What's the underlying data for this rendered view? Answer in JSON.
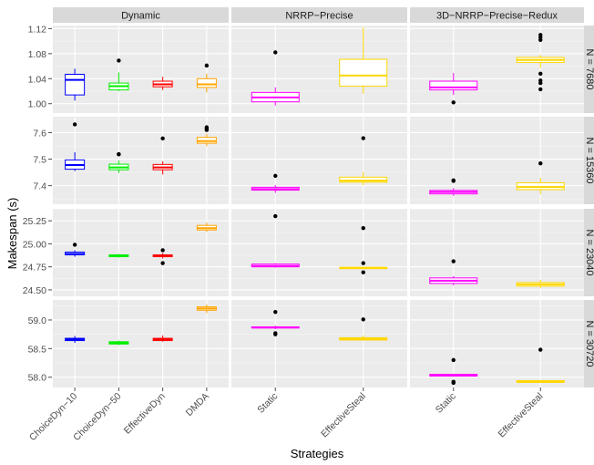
{
  "chart_data": {
    "type": "box",
    "xlabel": "Strategies",
    "ylabel": "Makespan (s)",
    "colors": {
      "ChoiceDyn−10": "#0000ff",
      "ChoiceDyn−50": "#00ee00",
      "EffectiveDyn": "#ff0000",
      "DMDA": "#ffa500",
      "Static": "#ff00ff",
      "EffectiveSteal": "#ffd700"
    },
    "columns": [
      {
        "label": "Dynamic",
        "strategies": [
          "ChoiceDyn−10",
          "ChoiceDyn−50",
          "EffectiveDyn",
          "DMDA"
        ]
      },
      {
        "label": "NRRP−Precise",
        "strategies": [
          "Static",
          "EffectiveSteal"
        ]
      },
      {
        "label": "3D−NRRP−Precise−Redux",
        "strategies": [
          "Static",
          "EffectiveSteal"
        ]
      }
    ],
    "rows": [
      {
        "label": "N = 7680",
        "ylim": [
          0.985,
          1.125
        ],
        "ticks": [
          1.0,
          1.04,
          1.08,
          1.12
        ],
        "tick_labels": [
          "1.00",
          "1.04",
          "1.08",
          "1.12"
        ],
        "boxes": [
          [
            {
              "min": 1.005,
              "q1": 1.014,
              "median": 1.038,
              "q3": 1.047,
              "max": 1.056,
              "outliers": []
            },
            {
              "min": 1.02,
              "q1": 1.022,
              "median": 1.028,
              "q3": 1.033,
              "max": 1.05,
              "outliers": [
                1.069
              ]
            },
            {
              "min": 1.022,
              "q1": 1.027,
              "median": 1.031,
              "q3": 1.036,
              "max": 1.043,
              "outliers": []
            },
            {
              "min": 1.018,
              "q1": 1.026,
              "median": 1.031,
              "q3": 1.04,
              "max": 1.048,
              "outliers": [
                1.061
              ]
            }
          ],
          [
            {
              "min": 0.997,
              "q1": 1.003,
              "median": 1.01,
              "q3": 1.018,
              "max": 1.026,
              "outliers": [
                1.082
              ]
            },
            {
              "min": 1.016,
              "q1": 1.028,
              "median": 1.045,
              "q3": 1.071,
              "max": 1.122,
              "outliers": []
            }
          ],
          [
            {
              "min": 1.014,
              "q1": 1.022,
              "median": 1.026,
              "q3": 1.036,
              "max": 1.049,
              "outliers": [
                1.002
              ]
            },
            {
              "min": 1.057,
              "q1": 1.066,
              "median": 1.07,
              "q3": 1.074,
              "max": 1.078,
              "outliers": [
                1.023,
                1.033,
                1.037,
                1.048,
                1.102,
                1.106,
                1.11
              ]
            }
          ]
        ]
      },
      {
        "label": "N = 15360",
        "ylim": [
          7.33,
          7.66
        ],
        "ticks": [
          7.4,
          7.5,
          7.6
        ],
        "tick_labels": [
          "7.4",
          "7.5",
          "7.6"
        ],
        "boxes": [
          [
            {
              "min": 7.455,
              "q1": 7.462,
              "median": 7.478,
              "q3": 7.497,
              "max": 7.526,
              "outliers": [
                7.631
              ]
            },
            {
              "min": 7.448,
              "q1": 7.46,
              "median": 7.469,
              "q3": 7.481,
              "max": 7.495,
              "outliers": [
                7.518,
                7.519
              ]
            },
            {
              "min": 7.442,
              "q1": 7.46,
              "median": 7.469,
              "q3": 7.48,
              "max": 7.492,
              "outliers": [
                7.578
              ]
            },
            {
              "min": 7.549,
              "q1": 7.56,
              "median": 7.568,
              "q3": 7.582,
              "max": 7.595,
              "outliers": [
                7.61,
                7.615,
                7.62
              ]
            }
          ],
          [
            {
              "min": 7.373,
              "q1": 7.383,
              "median": 7.387,
              "q3": 7.394,
              "max": 7.402,
              "outliers": [
                7.437
              ]
            },
            {
              "min": 7.402,
              "q1": 7.413,
              "median": 7.419,
              "q3": 7.432,
              "max": 7.452,
              "outliers": [
                7.579
              ]
            }
          ],
          [
            {
              "min": 7.362,
              "q1": 7.369,
              "median": 7.376,
              "q3": 7.382,
              "max": 7.391,
              "outliers": [
                7.418,
                7.42
              ]
            },
            {
              "min": 7.368,
              "q1": 7.385,
              "median": 7.395,
              "q3": 7.411,
              "max": 7.43,
              "outliers": [
                7.484
              ]
            }
          ]
        ]
      },
      {
        "label": "N = 23040",
        "ylim": [
          24.43,
          25.38
        ],
        "ticks": [
          24.5,
          24.75,
          25.0,
          25.25
        ],
        "tick_labels": [
          "24.50",
          "24.75",
          "25.00",
          "25.25"
        ],
        "boxes": [
          [
            {
              "min": 24.86,
              "q1": 24.88,
              "median": 24.89,
              "q3": 24.91,
              "max": 24.93,
              "outliers": [
                24.99
              ]
            },
            {
              "min": 24.85,
              "q1": 24.86,
              "median": 24.87,
              "q3": 24.88,
              "max": 24.89,
              "outliers": []
            },
            {
              "min": 24.84,
              "q1": 24.86,
              "median": 24.87,
              "q3": 24.88,
              "max": 24.9,
              "outliers": [
                24.79,
                24.93
              ]
            },
            {
              "min": 25.13,
              "q1": 25.15,
              "median": 25.17,
              "q3": 25.2,
              "max": 25.23,
              "outliers": []
            }
          ],
          [
            {
              "min": 24.74,
              "q1": 24.75,
              "median": 24.76,
              "q3": 24.78,
              "max": 24.79,
              "outliers": [
                25.3
              ]
            },
            {
              "min": 24.73,
              "q1": 24.73,
              "median": 24.74,
              "q3": 24.74,
              "max": 24.75,
              "outliers": [
                24.69,
                24.79,
                25.17
              ]
            }
          ],
          [
            {
              "min": 24.55,
              "q1": 24.57,
              "median": 24.6,
              "q3": 24.63,
              "max": 24.65,
              "outliers": [
                24.81
              ]
            },
            {
              "min": 24.52,
              "q1": 24.54,
              "median": 24.56,
              "q3": 24.58,
              "max": 24.61,
              "outliers": []
            }
          ]
        ]
      },
      {
        "label": "N = 30720",
        "ylim": [
          57.82,
          59.35
        ],
        "ticks": [
          58.0,
          58.5,
          59.0
        ],
        "tick_labels": [
          "58.0",
          "58.5",
          "59.0"
        ],
        "boxes": [
          [
            {
              "min": 58.6,
              "q1": 58.64,
              "median": 58.66,
              "q3": 58.68,
              "max": 58.72,
              "outliers": []
            },
            {
              "min": 58.56,
              "q1": 58.58,
              "median": 58.6,
              "q3": 58.62,
              "max": 58.64,
              "outliers": []
            },
            {
              "min": 58.62,
              "q1": 58.64,
              "median": 58.66,
              "q3": 58.68,
              "max": 58.73,
              "outliers": []
            },
            {
              "min": 59.12,
              "q1": 59.17,
              "median": 59.2,
              "q3": 59.23,
              "max": 59.27,
              "outliers": []
            }
          ],
          [
            {
              "min": 58.84,
              "q1": 58.86,
              "median": 58.87,
              "q3": 58.88,
              "max": 58.9,
              "outliers": [
                58.75,
                58.77,
                59.14
              ]
            },
            {
              "min": 58.64,
              "q1": 58.65,
              "median": 58.67,
              "q3": 58.69,
              "max": 58.73,
              "outliers": [
                59.01
              ]
            }
          ],
          [
            {
              "min": 58.02,
              "q1": 58.02,
              "median": 58.03,
              "q3": 58.05,
              "max": 58.06,
              "outliers": [
                57.9,
                57.92,
                58.3
              ]
            },
            {
              "min": 57.9,
              "q1": 57.91,
              "median": 57.92,
              "q3": 57.94,
              "max": 57.95,
              "outliers": [
                58.48
              ]
            }
          ]
        ]
      }
    ],
    "grid": true,
    "legend": "none"
  }
}
